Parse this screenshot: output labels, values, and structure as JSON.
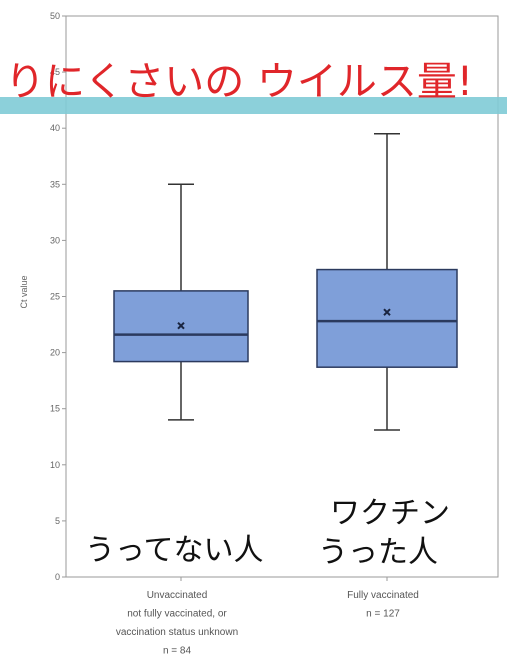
{
  "chart_data": {
    "type": "box",
    "ylabel": "Ct value",
    "ylim": [
      0,
      50
    ],
    "yticks": [
      0,
      5,
      10,
      15,
      20,
      25,
      30,
      35,
      40,
      45,
      50
    ],
    "categories": [
      {
        "label_lines": [
          "Unvaccinated",
          "not fully vaccinated, or",
          "vaccination status unknown",
          "n = 84"
        ],
        "whisker_low": 14.0,
        "q1": 19.2,
        "median": 21.6,
        "mean": 22.4,
        "q3": 25.5,
        "whisker_high": 35.0
      },
      {
        "label_lines": [
          "Fully vaccinated",
          "n = 127"
        ],
        "whisker_low": 13.1,
        "q1": 18.7,
        "median": 22.8,
        "mean": 23.6,
        "q3": 27.4,
        "whisker_high": 39.5
      }
    ],
    "colors": {
      "box_fill": "#7f9fd9",
      "box_stroke": "#2b3a5e",
      "highlight_band": "#7fcbd6"
    }
  },
  "annotations": {
    "top_red": "りにくさいの ウイルス量!",
    "left_black": "うってない人",
    "right_black_line1": "ワクチン",
    "right_black_line2": "うった人"
  }
}
